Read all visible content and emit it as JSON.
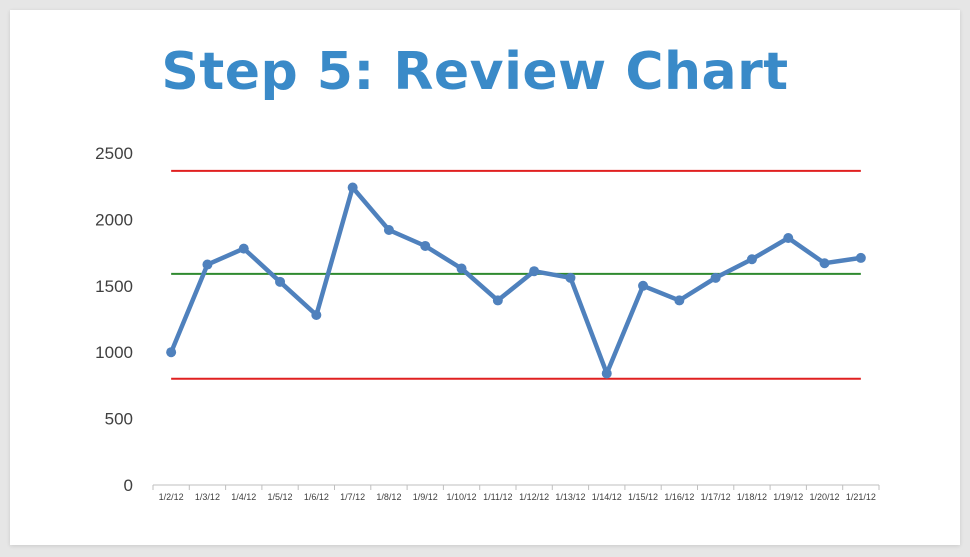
{
  "slide": {
    "title": "Step 5: Review Chart"
  },
  "colors": {
    "title": "#3a8ac8",
    "series": "#4f81bd",
    "control_limits": "#e02020",
    "center_line": "#2f8a2f",
    "axis": "#bfbfbf",
    "tick_text": "#404040"
  },
  "chart_data": {
    "type": "line",
    "title": "",
    "xlabel": "",
    "ylabel": "",
    "ylim": [
      0,
      2500
    ],
    "yticks": [
      0,
      500,
      1000,
      1500,
      2000,
      2500
    ],
    "grid": false,
    "categories": [
      "1/2/12",
      "1/3/12",
      "1/4/12",
      "1/5/12",
      "1/6/12",
      "1/7/12",
      "1/8/12",
      "1/9/12",
      "1/10/12",
      "1/11/12",
      "1/12/12",
      "1/13/12",
      "1/14/12",
      "1/15/12",
      "1/16/12",
      "1/17/12",
      "1/18/12",
      "1/19/12",
      "1/20/12",
      "1/21/12"
    ],
    "series": [
      {
        "values": [
          1000,
          1660,
          1780,
          1530,
          1280,
          2240,
          1920,
          1800,
          1630,
          1390,
          1610,
          1560,
          840,
          1500,
          1390,
          1560,
          1700,
          1860,
          1670,
          1710
        ]
      }
    ],
    "reference_lines": [
      {
        "role": "upper_limit",
        "value": 2365
      },
      {
        "role": "center",
        "value": 1590
      },
      {
        "role": "lower_limit",
        "value": 800
      }
    ]
  }
}
